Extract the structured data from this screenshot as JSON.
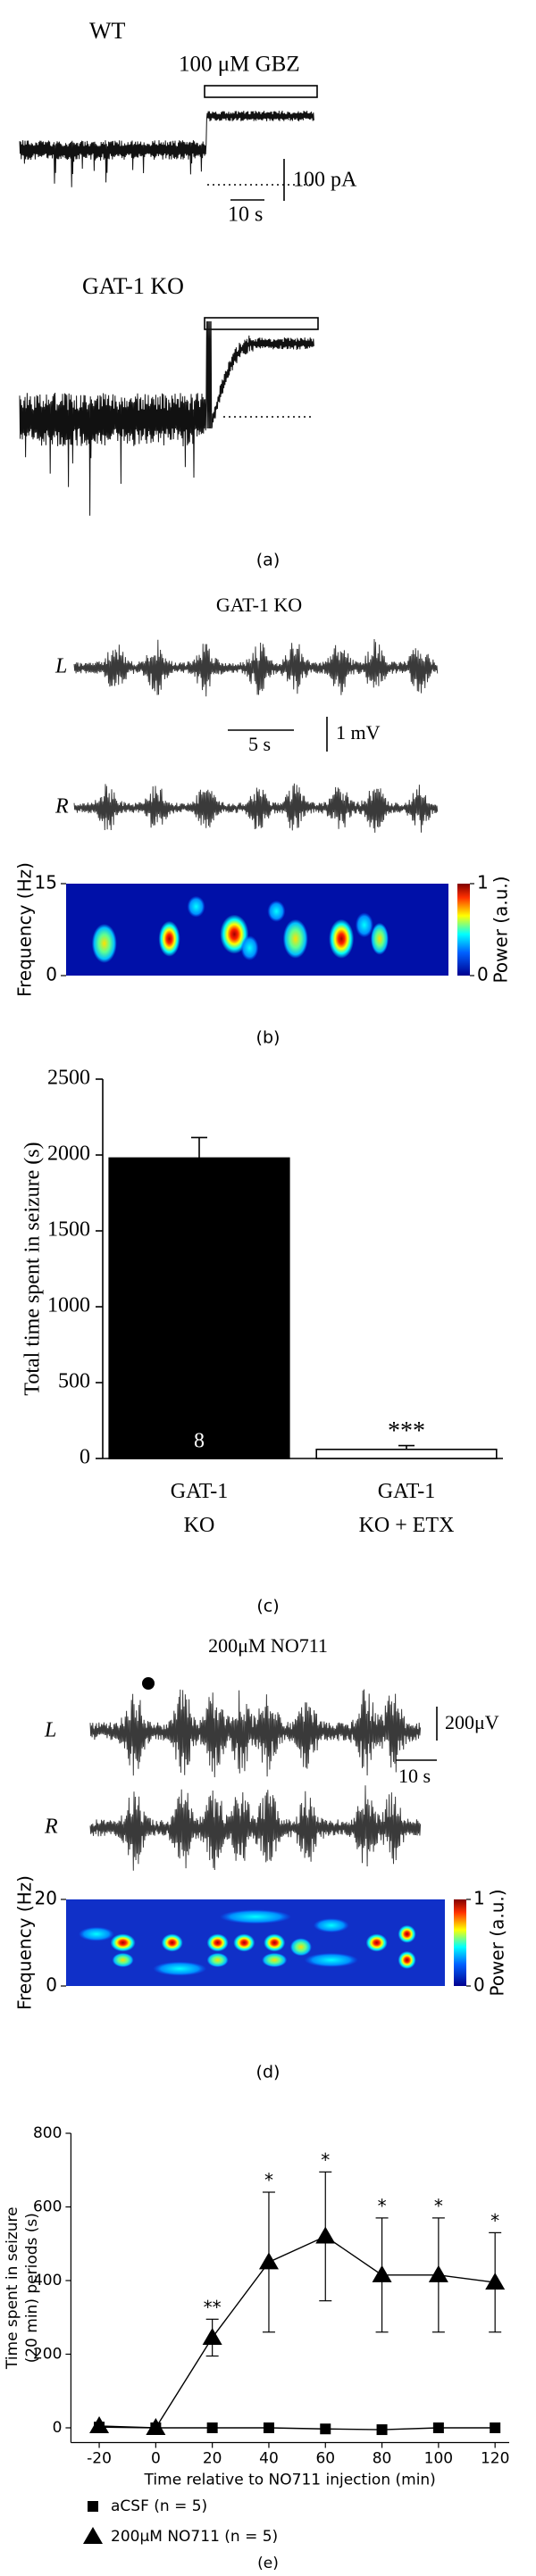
{
  "panel_a": {
    "wt_label": "WT",
    "drug_label": "100 μM GBZ",
    "current_scale": "100 pA",
    "time_scale": "10 s",
    "ko_label": "GAT-1 KO",
    "panel_label": "(a)"
  },
  "panel_b": {
    "title": "GAT-1 KO",
    "left_label": "L",
    "right_label": "R",
    "time_scale": "5 s",
    "voltage_scale": "1 mV",
    "y_label": "Frequency (Hz)",
    "ylim": [
      0,
      15
    ],
    "yticks": [
      0,
      15
    ],
    "colorbar_label": "Power (a.u.)",
    "colorbar_ticks": [
      0,
      1
    ],
    "panel_label": "(b)"
  },
  "chart_data": [
    {
      "type": "bar",
      "y_label": "Total time spent in seizure (s)",
      "categories": [
        "GAT-1 KO",
        "GAT-1 KO + ETX"
      ],
      "values": [
        1980,
        60
      ],
      "errors": [
        135,
        25
      ],
      "colors": [
        "#000000",
        "#ffffff"
      ],
      "sample_size_labels": [
        "8",
        null
      ],
      "significance_labels": [
        null,
        "***"
      ],
      "ylim": [
        0,
        2500
      ],
      "yticks": [
        0,
        500,
        1000,
        1500,
        2000,
        2500
      ],
      "panel_label": "(c)"
    },
    {
      "type": "line",
      "y_label_lines": [
        "Time spent in seizure",
        "(20 min) periods (s)"
      ],
      "x_label": "Time relative to NO711 injection (min)",
      "x": [
        -20,
        0,
        20,
        40,
        60,
        80,
        100,
        120
      ],
      "series": [
        {
          "name": "aCSF (n = 5)",
          "color": "#000000",
          "marker": "square",
          "values": [
            2,
            0,
            0,
            0,
            -3,
            -5,
            0,
            0
          ]
        },
        {
          "name": "200μM NO711 (n = 5)",
          "color": "#000000",
          "marker": "triangle",
          "values": [
            5,
            0,
            245,
            450,
            520,
            415,
            415,
            395
          ],
          "errors": [
            null,
            null,
            50,
            190,
            175,
            155,
            155,
            135
          ],
          "significance_labels": [
            null,
            null,
            "**",
            "*",
            "*",
            "*",
            "*",
            "*"
          ]
        }
      ],
      "xlim": [
        -30,
        125
      ],
      "xticks": [
        -20,
        0,
        20,
        40,
        60,
        80,
        100,
        120
      ],
      "ylim": [
        -40,
        800
      ],
      "yticks": [
        0,
        200,
        400,
        600,
        800
      ],
      "panel_label": "(e)"
    }
  ],
  "panel_d": {
    "title": "200μM NO711",
    "left_label": "L",
    "right_label": "R",
    "voltage_scale": "200μV",
    "time_scale": "10 s",
    "y_label": "Frequency (Hz)",
    "ylim": [
      0,
      20
    ],
    "yticks": [
      0,
      20
    ],
    "colorbar_label": "Power (a.u.)",
    "colorbar_ticks": [
      0,
      1
    ],
    "panel_label": "(d)"
  }
}
